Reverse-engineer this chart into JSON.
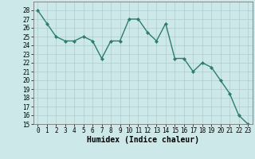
{
  "x": [
    0,
    1,
    2,
    3,
    4,
    5,
    6,
    7,
    8,
    9,
    10,
    11,
    12,
    13,
    14,
    15,
    16,
    17,
    18,
    19,
    20,
    21,
    22,
    23
  ],
  "y": [
    28,
    26.5,
    25,
    24.5,
    24.5,
    25,
    24.5,
    22.5,
    24.5,
    24.5,
    27,
    27,
    25.5,
    24.5,
    26.5,
    22.5,
    22.5,
    21,
    22,
    21.5,
    20,
    18.5,
    16,
    15
  ],
  "line_color": "#2e7d6e",
  "marker": "D",
  "marker_size": 2.0,
  "bg_color": "#cce8e8",
  "grid_color": "#b0cccc",
  "xlabel": "Humidex (Indice chaleur)",
  "ylim": [
    15,
    29
  ],
  "xlim": [
    -0.5,
    23.5
  ],
  "yticks": [
    15,
    16,
    17,
    18,
    19,
    20,
    21,
    22,
    23,
    24,
    25,
    26,
    27,
    28
  ],
  "xticks": [
    0,
    1,
    2,
    3,
    4,
    5,
    6,
    7,
    8,
    9,
    10,
    11,
    12,
    13,
    14,
    15,
    16,
    17,
    18,
    19,
    20,
    21,
    22,
    23
  ],
  "tick_fontsize": 5.5,
  "xlabel_fontsize": 7.0,
  "linewidth": 1.0
}
